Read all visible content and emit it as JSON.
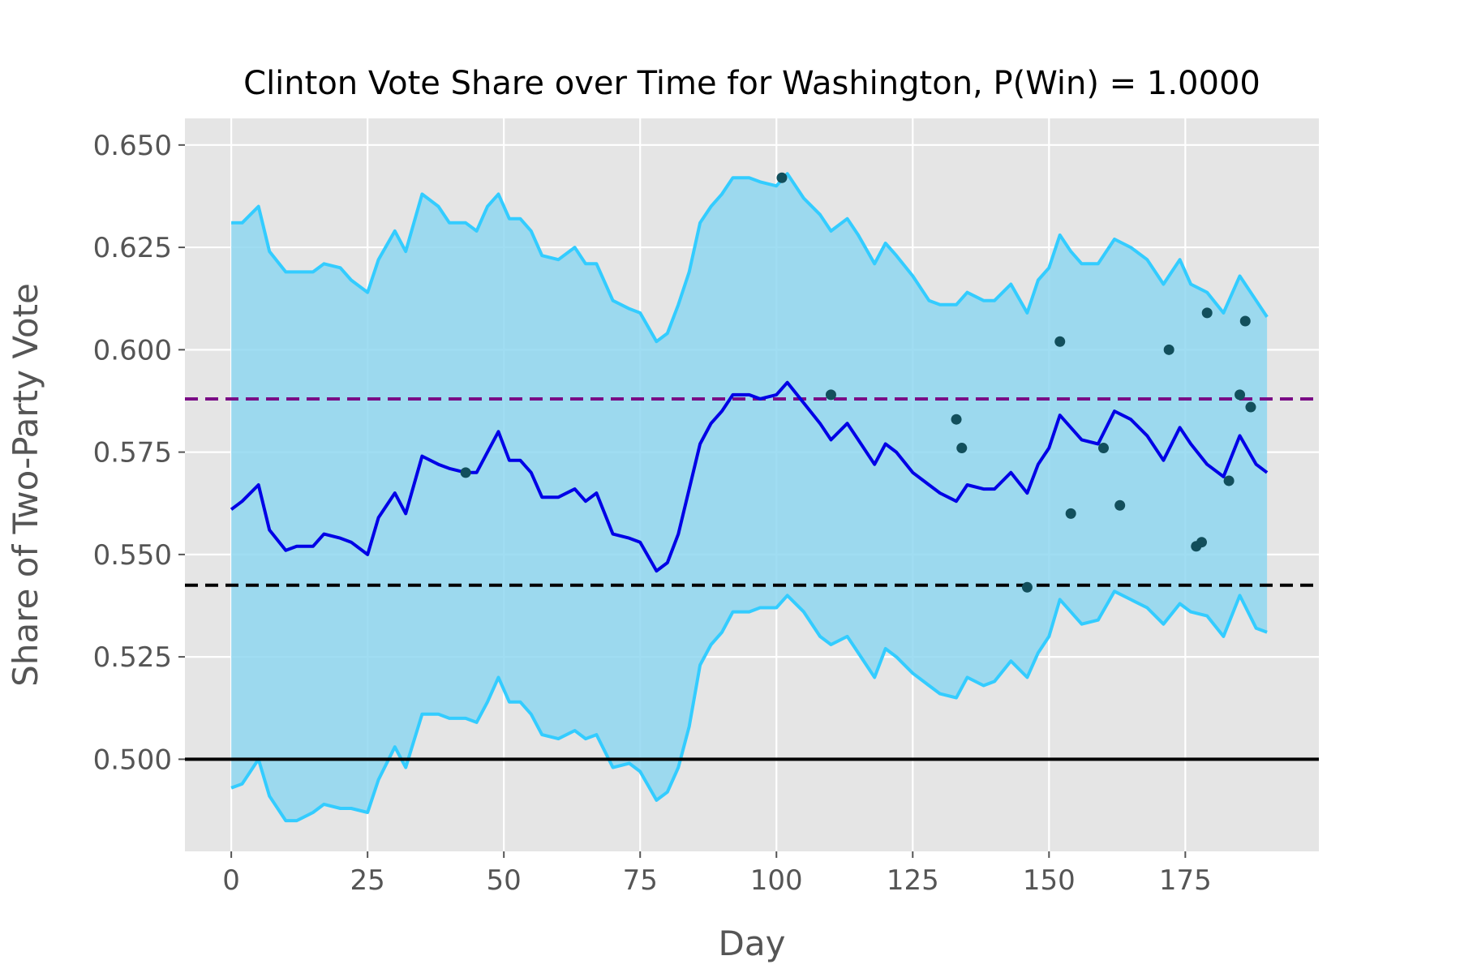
{
  "chart_data": {
    "type": "line",
    "title": "Clinton Vote Share over Time for Washington, P(Win) = 1.0000",
    "xlabel": "Day",
    "ylabel": "Share of Two-Party Vote",
    "xlim": [
      -8.5,
      199.5
    ],
    "ylim": [
      0.4775,
      0.6565
    ],
    "xticks": [
      0,
      25,
      50,
      75,
      100,
      125,
      150,
      175
    ],
    "xtick_labels": [
      "0",
      "25",
      "50",
      "75",
      "100",
      "125",
      "150",
      "175"
    ],
    "yticks": [
      0.5,
      0.525,
      0.55,
      0.575,
      0.6,
      0.625,
      0.65
    ],
    "ytick_labels": [
      "0.500",
      "0.525",
      "0.550",
      "0.575",
      "0.600",
      "0.625",
      "0.650"
    ],
    "grid": true,
    "legend": "none",
    "colors": {
      "background": "#e5e5e5",
      "grid": "#ffffff",
      "band_fill": "#8fd7f0",
      "band_edge": "#33ccff",
      "mean_line": "#0000e6",
      "poll_points": "#124f5c",
      "purple_dashed": "#7a0c85",
      "black_dashed": "#000000",
      "baseline": "#000000"
    },
    "series": [
      {
        "role": "mean",
        "x": [
          0,
          2,
          5,
          7,
          10,
          12,
          15,
          17,
          20,
          22,
          25,
          27,
          30,
          32,
          35,
          38,
          40,
          43,
          45,
          47,
          49,
          51,
          53,
          55,
          57,
          60,
          63,
          65,
          67,
          70,
          73,
          75,
          78,
          80,
          82,
          84,
          86,
          88,
          90,
          92,
          95,
          97,
          100,
          102,
          105,
          108,
          110,
          113,
          115,
          118,
          120,
          122,
          125,
          128,
          130,
          133,
          135,
          138,
          140,
          143,
          146,
          148,
          150,
          152,
          154,
          156,
          159,
          162,
          165,
          168,
          171,
          174,
          176,
          179,
          182,
          185,
          188,
          190
        ],
        "y": [
          0.561,
          0.563,
          0.567,
          0.556,
          0.551,
          0.552,
          0.552,
          0.555,
          0.554,
          0.553,
          0.55,
          0.559,
          0.565,
          0.56,
          0.574,
          0.572,
          0.571,
          0.57,
          0.57,
          0.575,
          0.58,
          0.573,
          0.573,
          0.57,
          0.564,
          0.564,
          0.566,
          0.563,
          0.565,
          0.555,
          0.554,
          0.553,
          0.546,
          0.548,
          0.555,
          0.566,
          0.577,
          0.582,
          0.585,
          0.589,
          0.589,
          0.588,
          0.589,
          0.592,
          0.587,
          0.582,
          0.578,
          0.582,
          0.578,
          0.572,
          0.577,
          0.575,
          0.57,
          0.567,
          0.565,
          0.563,
          0.567,
          0.566,
          0.566,
          0.57,
          0.565,
          0.572,
          0.576,
          0.584,
          0.581,
          0.578,
          0.577,
          0.585,
          0.583,
          0.579,
          0.573,
          0.581,
          0.577,
          0.572,
          0.569,
          0.579,
          0.572,
          0.57
        ]
      },
      {
        "role": "upper_band",
        "x": [
          0,
          2,
          5,
          7,
          10,
          12,
          15,
          17,
          20,
          22,
          25,
          27,
          30,
          32,
          35,
          38,
          40,
          43,
          45,
          47,
          49,
          51,
          53,
          55,
          57,
          60,
          63,
          65,
          67,
          70,
          73,
          75,
          78,
          80,
          82,
          84,
          86,
          88,
          90,
          92,
          95,
          97,
          100,
          102,
          105,
          108,
          110,
          113,
          115,
          118,
          120,
          122,
          125,
          128,
          130,
          133,
          135,
          138,
          140,
          143,
          146,
          148,
          150,
          152,
          154,
          156,
          159,
          162,
          165,
          168,
          171,
          174,
          176,
          179,
          182,
          185,
          188,
          190
        ],
        "y": [
          0.631,
          0.631,
          0.635,
          0.624,
          0.619,
          0.619,
          0.619,
          0.621,
          0.62,
          0.617,
          0.614,
          0.622,
          0.629,
          0.624,
          0.638,
          0.635,
          0.631,
          0.631,
          0.629,
          0.635,
          0.638,
          0.632,
          0.632,
          0.629,
          0.623,
          0.622,
          0.625,
          0.621,
          0.621,
          0.612,
          0.61,
          0.609,
          0.602,
          0.604,
          0.611,
          0.619,
          0.631,
          0.635,
          0.638,
          0.642,
          0.642,
          0.641,
          0.64,
          0.643,
          0.637,
          0.633,
          0.629,
          0.632,
          0.628,
          0.621,
          0.626,
          0.623,
          0.618,
          0.612,
          0.611,
          0.611,
          0.614,
          0.612,
          0.612,
          0.616,
          0.609,
          0.617,
          0.62,
          0.628,
          0.624,
          0.621,
          0.621,
          0.627,
          0.625,
          0.622,
          0.616,
          0.622,
          0.616,
          0.614,
          0.609,
          0.618,
          0.612,
          0.608
        ]
      },
      {
        "role": "lower_band",
        "x": [
          0,
          2,
          5,
          7,
          10,
          12,
          15,
          17,
          20,
          22,
          25,
          27,
          30,
          32,
          35,
          38,
          40,
          43,
          45,
          47,
          49,
          51,
          53,
          55,
          57,
          60,
          63,
          65,
          67,
          70,
          73,
          75,
          78,
          80,
          82,
          84,
          86,
          88,
          90,
          92,
          95,
          97,
          100,
          102,
          105,
          108,
          110,
          113,
          115,
          118,
          120,
          122,
          125,
          128,
          130,
          133,
          135,
          138,
          140,
          143,
          146,
          148,
          150,
          152,
          154,
          156,
          159,
          162,
          165,
          168,
          171,
          174,
          176,
          179,
          182,
          185,
          188,
          190
        ],
        "y": [
          0.493,
          0.494,
          0.5,
          0.491,
          0.485,
          0.485,
          0.487,
          0.489,
          0.488,
          0.488,
          0.487,
          0.495,
          0.503,
          0.498,
          0.511,
          0.511,
          0.51,
          0.51,
          0.509,
          0.514,
          0.52,
          0.514,
          0.514,
          0.511,
          0.506,
          0.505,
          0.507,
          0.505,
          0.506,
          0.498,
          0.499,
          0.497,
          0.49,
          0.492,
          0.498,
          0.508,
          0.523,
          0.528,
          0.531,
          0.536,
          0.536,
          0.537,
          0.537,
          0.54,
          0.536,
          0.53,
          0.528,
          0.53,
          0.526,
          0.52,
          0.527,
          0.525,
          0.521,
          0.518,
          0.516,
          0.515,
          0.52,
          0.518,
          0.519,
          0.524,
          0.52,
          0.526,
          0.53,
          0.539,
          0.536,
          0.533,
          0.534,
          0.541,
          0.539,
          0.537,
          0.533,
          0.538,
          0.536,
          0.535,
          0.53,
          0.54,
          0.532,
          0.531
        ]
      },
      {
        "role": "polls",
        "x": [
          43,
          101,
          110,
          133,
          134,
          146,
          152,
          154,
          160,
          163,
          172,
          177,
          178,
          179,
          183,
          185,
          186,
          187
        ],
        "y": [
          0.57,
          0.642,
          0.589,
          0.583,
          0.576,
          0.542,
          0.602,
          0.56,
          0.576,
          0.562,
          0.6,
          0.552,
          0.553,
          0.609,
          0.568,
          0.589,
          0.607,
          0.586
        ]
      }
    ],
    "hlines": [
      {
        "y": 0.588,
        "style": "dashed",
        "color": "purple"
      },
      {
        "y": 0.5425,
        "style": "dashed",
        "color": "black"
      },
      {
        "y": 0.5,
        "style": "solid",
        "color": "black"
      }
    ]
  }
}
